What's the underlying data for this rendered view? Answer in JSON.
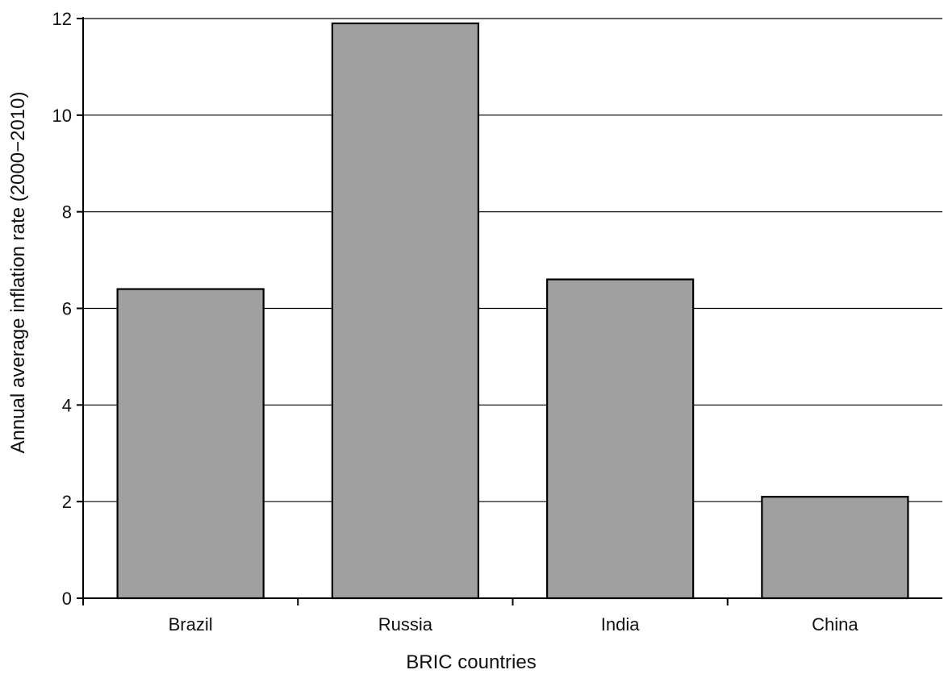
{
  "chart_data": {
    "type": "bar",
    "categories": [
      "Brazil",
      "Russia",
      "India",
      "China"
    ],
    "values": [
      6.4,
      11.9,
      6.6,
      2.1
    ],
    "xlabel": "BRIC countries",
    "ylabel": "Annual average inflation rate (2000−2010)",
    "ylim": [
      0,
      12
    ],
    "yticks": [
      0,
      2,
      4,
      6,
      8,
      10,
      12
    ],
    "grid": true,
    "legend": "none",
    "colors": {
      "bar_fill": "#a0a0a0",
      "bar_stroke": "#000000",
      "grid": "#000000"
    }
  }
}
